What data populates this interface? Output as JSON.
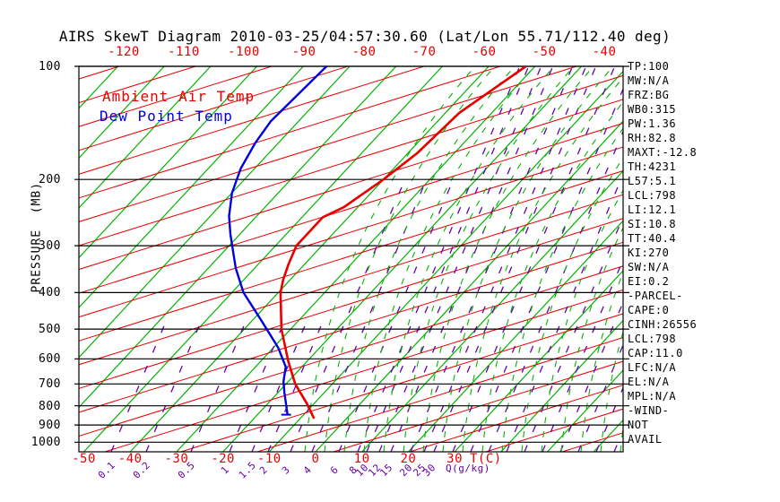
{
  "title": "AIRS SkewT Diagram 2010-03-25/04:57:30.60 (Lat/Lon 55.71/112.40 deg)",
  "legend": {
    "ambient_label": "Ambient Air Temp",
    "dew_label": "Dew Point Temp"
  },
  "axes": {
    "pressure": {
      "title": "PRESSURE  (MB)",
      "ticks": [
        "100",
        "200",
        "300",
        "400",
        "500",
        "600",
        "700",
        "800",
        "900",
        "1000"
      ]
    },
    "temp_top": {
      "ticks": [
        "-120",
        "-110",
        "-100",
        "-90",
        "-80",
        "-70",
        "-60",
        "-50",
        "-40"
      ]
    },
    "temp_bottom": {
      "title": "T(C)",
      "ticks": [
        "-50",
        "-40",
        "-30",
        "-20",
        "-10",
        "0",
        "10",
        "20",
        "30"
      ]
    },
    "mixing": {
      "title": "Q(g/kg)",
      "ticks": [
        {
          "label": "0.1",
          "x": 118
        },
        {
          "label": "0.2",
          "x": 157
        },
        {
          "label": "0.5",
          "x": 207
        },
        {
          "label": "1",
          "x": 250
        },
        {
          "label": "1.5",
          "x": 275
        },
        {
          "label": "2",
          "x": 293
        },
        {
          "label": "3",
          "x": 318
        },
        {
          "label": "4",
          "x": 342
        },
        {
          "label": "6",
          "x": 372
        },
        {
          "label": "8",
          "x": 393
        },
        {
          "label": "10",
          "x": 403
        },
        {
          "label": "12",
          "x": 417
        },
        {
          "label": "15",
          "x": 430
        },
        {
          "label": "20",
          "x": 452
        },
        {
          "label": "25",
          "x": 467
        },
        {
          "label": "30",
          "x": 478
        }
      ]
    }
  },
  "panel": {
    "lines": [
      "TP:100",
      "MW:N/A",
      "FRZ:BG",
      "WB0:315",
      "PW:1.36",
      "RH:82.8",
      "MAXT:-12.8",
      "TH:4231",
      "L57:5.1",
      "LCL:798",
      "LI:12.1",
      "SI:10.8",
      "TT:40.4",
      "KI:270",
      "SW:N/A",
      "EI:0.2",
      "-PARCEL-",
      "CAPE:0",
      "CINH:26556",
      "LCL:798",
      "CAP:11.0",
      "LFC:N/A",
      "EL:N/A",
      "MPL:N/A",
      "-WIND-",
      "NOT",
      "AVAIL"
    ]
  },
  "colors": {
    "ambient_curve": "#e80000",
    "dew_curve": "#0000e0",
    "isotherm_green": "#00b400",
    "dry_adiabat_red": "#e80000",
    "mixing_purple": "#6600aa",
    "grid_black": "#000000",
    "label_red": "#e80000"
  },
  "chart_data": {
    "type": "line",
    "title": "AIRS SkewT Diagram 2010-03-25/04:57:30.60 (Lat/Lon 55.71/112.40 deg)",
    "xlabel": "T(C) (skewed temperature axis)",
    "ylabel": "PRESSURE (MB)",
    "y_scale": "log",
    "ylim": [
      100,
      1050
    ],
    "xlim_bottom_axis": [
      -50,
      30
    ],
    "xlim_top_axis": [
      -120,
      -40
    ],
    "grid": "horizontal pressure lines 100-1000 mb",
    "legend_position": "top-left inside plot",
    "series": [
      {
        "name": "Ambient Air Temp",
        "color": "#e80000",
        "units": [
          "pressure_mb",
          "temp_c"
        ],
        "points": [
          [
            100,
            -32
          ],
          [
            133,
            -37
          ],
          [
            170,
            -38
          ],
          [
            200,
            -40
          ],
          [
            237,
            -43
          ],
          [
            252,
            -45.5
          ],
          [
            300,
            -45.5
          ],
          [
            336,
            -43.5
          ],
          [
            370,
            -41.5
          ],
          [
            400,
            -39.5
          ],
          [
            500,
            -32
          ],
          [
            610,
            -24
          ],
          [
            700,
            -18
          ],
          [
            790,
            -11.5
          ],
          [
            865,
            -7
          ]
        ]
      },
      {
        "name": "Dew Point Temp",
        "color": "#0000e0",
        "units": [
          "pressure_mb",
          "temp_c"
        ],
        "points": [
          [
            100,
            -75
          ],
          [
            140,
            -76
          ],
          [
            160,
            -75
          ],
          [
            187,
            -73
          ],
          [
            217,
            -70
          ],
          [
            250,
            -66
          ],
          [
            280,
            -62
          ],
          [
            345,
            -54
          ],
          [
            400,
            -47.5
          ],
          [
            475,
            -38
          ],
          [
            560,
            -29
          ],
          [
            630,
            -23.5
          ],
          [
            690,
            -21
          ],
          [
            740,
            -18.5
          ],
          [
            845,
            -13.5
          ]
        ]
      }
    ],
    "background": {
      "isotherms_c": {
        "min": -130,
        "max": 60,
        "step": 10,
        "style": "solid green, skewed 45deg"
      },
      "dry_adiabats": {
        "style": "thin solid red, shallow slope up-right",
        "count": 23
      },
      "mixing_ratio_g_kg": [
        "0.1",
        "0.2",
        "0.5",
        "1",
        "1.5",
        "2",
        "3",
        "4",
        "6",
        "8",
        "10",
        "12",
        "15",
        "20",
        "25",
        "30"
      ],
      "mixing_ratio_style": "dashed purple",
      "moist_adiabats": {
        "style": "dashed green curves, near-vertical at bottom right",
        "count": 17
      }
    }
  }
}
